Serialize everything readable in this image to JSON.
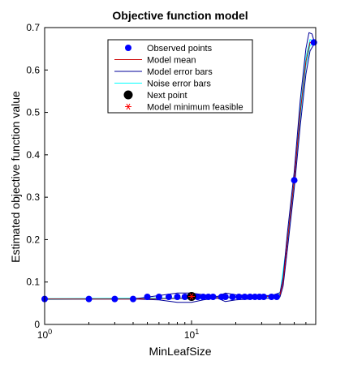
{
  "chart_data": {
    "type": "line",
    "title": "Objective function model",
    "xlabel": "MinLeafSize",
    "ylabel": "Estimated objective function value",
    "xscale": "log",
    "xlim": [
      1,
      70
    ],
    "ylim": [
      0,
      0.7
    ],
    "yticks": [
      "0",
      "0.1",
      "0.2",
      "0.3",
      "0.4",
      "0.5",
      "0.6",
      "0.7"
    ],
    "xticks": [
      {
        "base": "10",
        "exp": "0",
        "value": 1
      },
      {
        "base": "10",
        "exp": "1",
        "value": 10
      }
    ],
    "grid": false,
    "legend_position": "top-center",
    "legend": [
      {
        "label": "Observed points",
        "kind": "dot",
        "color": "#0000ff"
      },
      {
        "label": "Model mean",
        "kind": "line",
        "color": "#cc0000"
      },
      {
        "label": "Model error bars",
        "kind": "line",
        "color": "#000099"
      },
      {
        "label": "Noise error bars",
        "kind": "line",
        "color": "#00ffff"
      },
      {
        "label": "Next point",
        "kind": "bigdot",
        "color": "#000000"
      },
      {
        "label": "Model minimum feasible",
        "kind": "star",
        "color": "#ff0000"
      }
    ],
    "observed_points": [
      {
        "x": 1,
        "y": 0.06
      },
      {
        "x": 2,
        "y": 0.06
      },
      {
        "x": 3,
        "y": 0.06
      },
      {
        "x": 4,
        "y": 0.06
      },
      {
        "x": 5,
        "y": 0.065
      },
      {
        "x": 6,
        "y": 0.065
      },
      {
        "x": 7,
        "y": 0.065
      },
      {
        "x": 8,
        "y": 0.065
      },
      {
        "x": 9,
        "y": 0.065
      },
      {
        "x": 11,
        "y": 0.065
      },
      {
        "x": 12,
        "y": 0.065
      },
      {
        "x": 13,
        "y": 0.065
      },
      {
        "x": 14,
        "y": 0.065
      },
      {
        "x": 16,
        "y": 0.065
      },
      {
        "x": 17,
        "y": 0.065
      },
      {
        "x": 19,
        "y": 0.065
      },
      {
        "x": 21,
        "y": 0.065
      },
      {
        "x": 23,
        "y": 0.065
      },
      {
        "x": 25,
        "y": 0.065
      },
      {
        "x": 27,
        "y": 0.065
      },
      {
        "x": 29,
        "y": 0.065
      },
      {
        "x": 31,
        "y": 0.065
      },
      {
        "x": 35,
        "y": 0.065
      },
      {
        "x": 38,
        "y": 0.065
      },
      {
        "x": 50,
        "y": 0.34
      },
      {
        "x": 68,
        "y": 0.665
      }
    ],
    "model_mean": [
      {
        "x": 1,
        "y": 0.06
      },
      {
        "x": 4,
        "y": 0.06
      },
      {
        "x": 10,
        "y": 0.062
      },
      {
        "x": 20,
        "y": 0.064
      },
      {
        "x": 35,
        "y": 0.066
      },
      {
        "x": 40,
        "y": 0.07
      },
      {
        "x": 42,
        "y": 0.1
      },
      {
        "x": 45,
        "y": 0.2
      },
      {
        "x": 50,
        "y": 0.34
      },
      {
        "x": 55,
        "y": 0.5
      },
      {
        "x": 60,
        "y": 0.62
      },
      {
        "x": 64,
        "y": 0.665
      },
      {
        "x": 68,
        "y": 0.665
      }
    ],
    "model_upper": [
      {
        "x": 1,
        "y": 0.06
      },
      {
        "x": 4,
        "y": 0.06
      },
      {
        "x": 6,
        "y": 0.068
      },
      {
        "x": 8,
        "y": 0.074
      },
      {
        "x": 10,
        "y": 0.074
      },
      {
        "x": 12,
        "y": 0.07
      },
      {
        "x": 15,
        "y": 0.066
      },
      {
        "x": 17,
        "y": 0.074
      },
      {
        "x": 20,
        "y": 0.07
      },
      {
        "x": 25,
        "y": 0.068
      },
      {
        "x": 35,
        "y": 0.068
      },
      {
        "x": 40,
        "y": 0.075
      },
      {
        "x": 42,
        "y": 0.11
      },
      {
        "x": 45,
        "y": 0.22
      },
      {
        "x": 50,
        "y": 0.36
      },
      {
        "x": 55,
        "y": 0.53
      },
      {
        "x": 60,
        "y": 0.65
      },
      {
        "x": 63,
        "y": 0.688
      },
      {
        "x": 66,
        "y": 0.685
      },
      {
        "x": 68,
        "y": 0.67
      }
    ],
    "model_lower": [
      {
        "x": 1,
        "y": 0.06
      },
      {
        "x": 4,
        "y": 0.06
      },
      {
        "x": 6,
        "y": 0.058
      },
      {
        "x": 8,
        "y": 0.052
      },
      {
        "x": 10,
        "y": 0.052
      },
      {
        "x": 12,
        "y": 0.058
      },
      {
        "x": 15,
        "y": 0.062
      },
      {
        "x": 17,
        "y": 0.054
      },
      {
        "x": 20,
        "y": 0.058
      },
      {
        "x": 25,
        "y": 0.06
      },
      {
        "x": 35,
        "y": 0.062
      },
      {
        "x": 40,
        "y": 0.065
      },
      {
        "x": 42,
        "y": 0.09
      },
      {
        "x": 45,
        "y": 0.18
      },
      {
        "x": 50,
        "y": 0.32
      },
      {
        "x": 55,
        "y": 0.47
      },
      {
        "x": 60,
        "y": 0.59
      },
      {
        "x": 64,
        "y": 0.645
      },
      {
        "x": 68,
        "y": 0.66
      }
    ],
    "noise_upper": [
      {
        "x": 1,
        "y": 0.061
      },
      {
        "x": 10,
        "y": 0.063
      },
      {
        "x": 35,
        "y": 0.067
      },
      {
        "x": 40,
        "y": 0.072
      },
      {
        "x": 45,
        "y": 0.205
      },
      {
        "x": 50,
        "y": 0.345
      },
      {
        "x": 55,
        "y": 0.51
      },
      {
        "x": 60,
        "y": 0.63
      },
      {
        "x": 64,
        "y": 0.672
      },
      {
        "x": 68,
        "y": 0.668
      }
    ],
    "noise_lower": [
      {
        "x": 1,
        "y": 0.059
      },
      {
        "x": 10,
        "y": 0.061
      },
      {
        "x": 35,
        "y": 0.065
      },
      {
        "x": 40,
        "y": 0.068
      },
      {
        "x": 45,
        "y": 0.195
      },
      {
        "x": 50,
        "y": 0.335
      },
      {
        "x": 55,
        "y": 0.49
      },
      {
        "x": 60,
        "y": 0.61
      },
      {
        "x": 64,
        "y": 0.658
      },
      {
        "x": 68,
        "y": 0.662
      }
    ],
    "next_point": {
      "x": 10,
      "y": 0.066
    },
    "model_minimum": {
      "x": 10,
      "y": 0.066
    }
  }
}
